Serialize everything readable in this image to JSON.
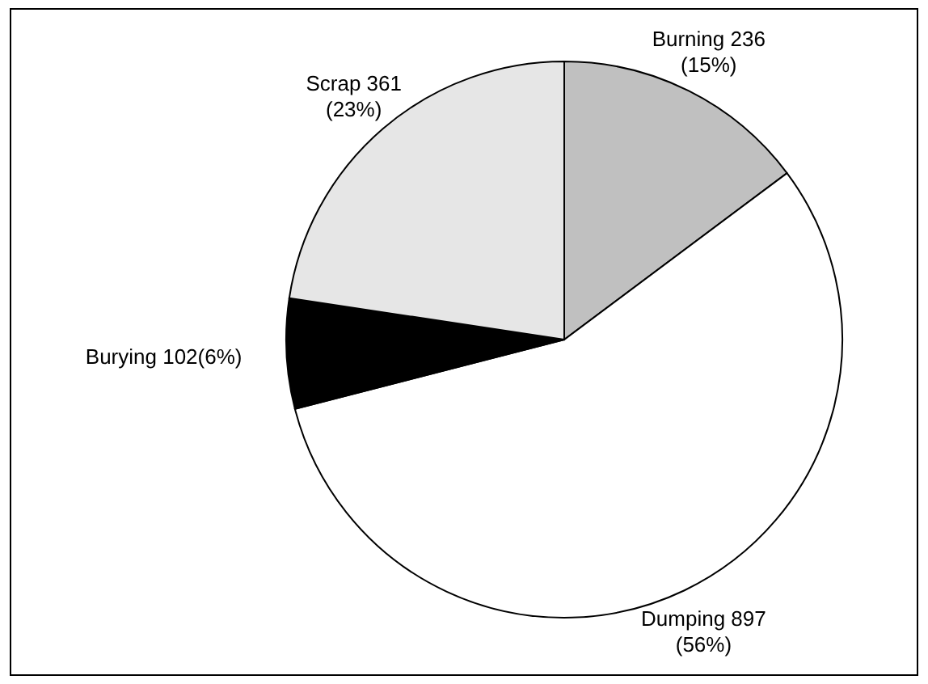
{
  "chart_data": {
    "type": "pie",
    "categories": [
      "Burning",
      "Dumping",
      "Burying",
      "Scrap"
    ],
    "values": [
      236,
      897,
      102,
      361
    ],
    "colors": [
      "#c0c0c0",
      "#ffffff",
      "#000000",
      "#e6e6e6"
    ],
    "value_labels": [
      "236\n(15%)",
      "897\n(56%)",
      "102(6%)",
      "361\n(23%)"
    ],
    "legend": false
  }
}
